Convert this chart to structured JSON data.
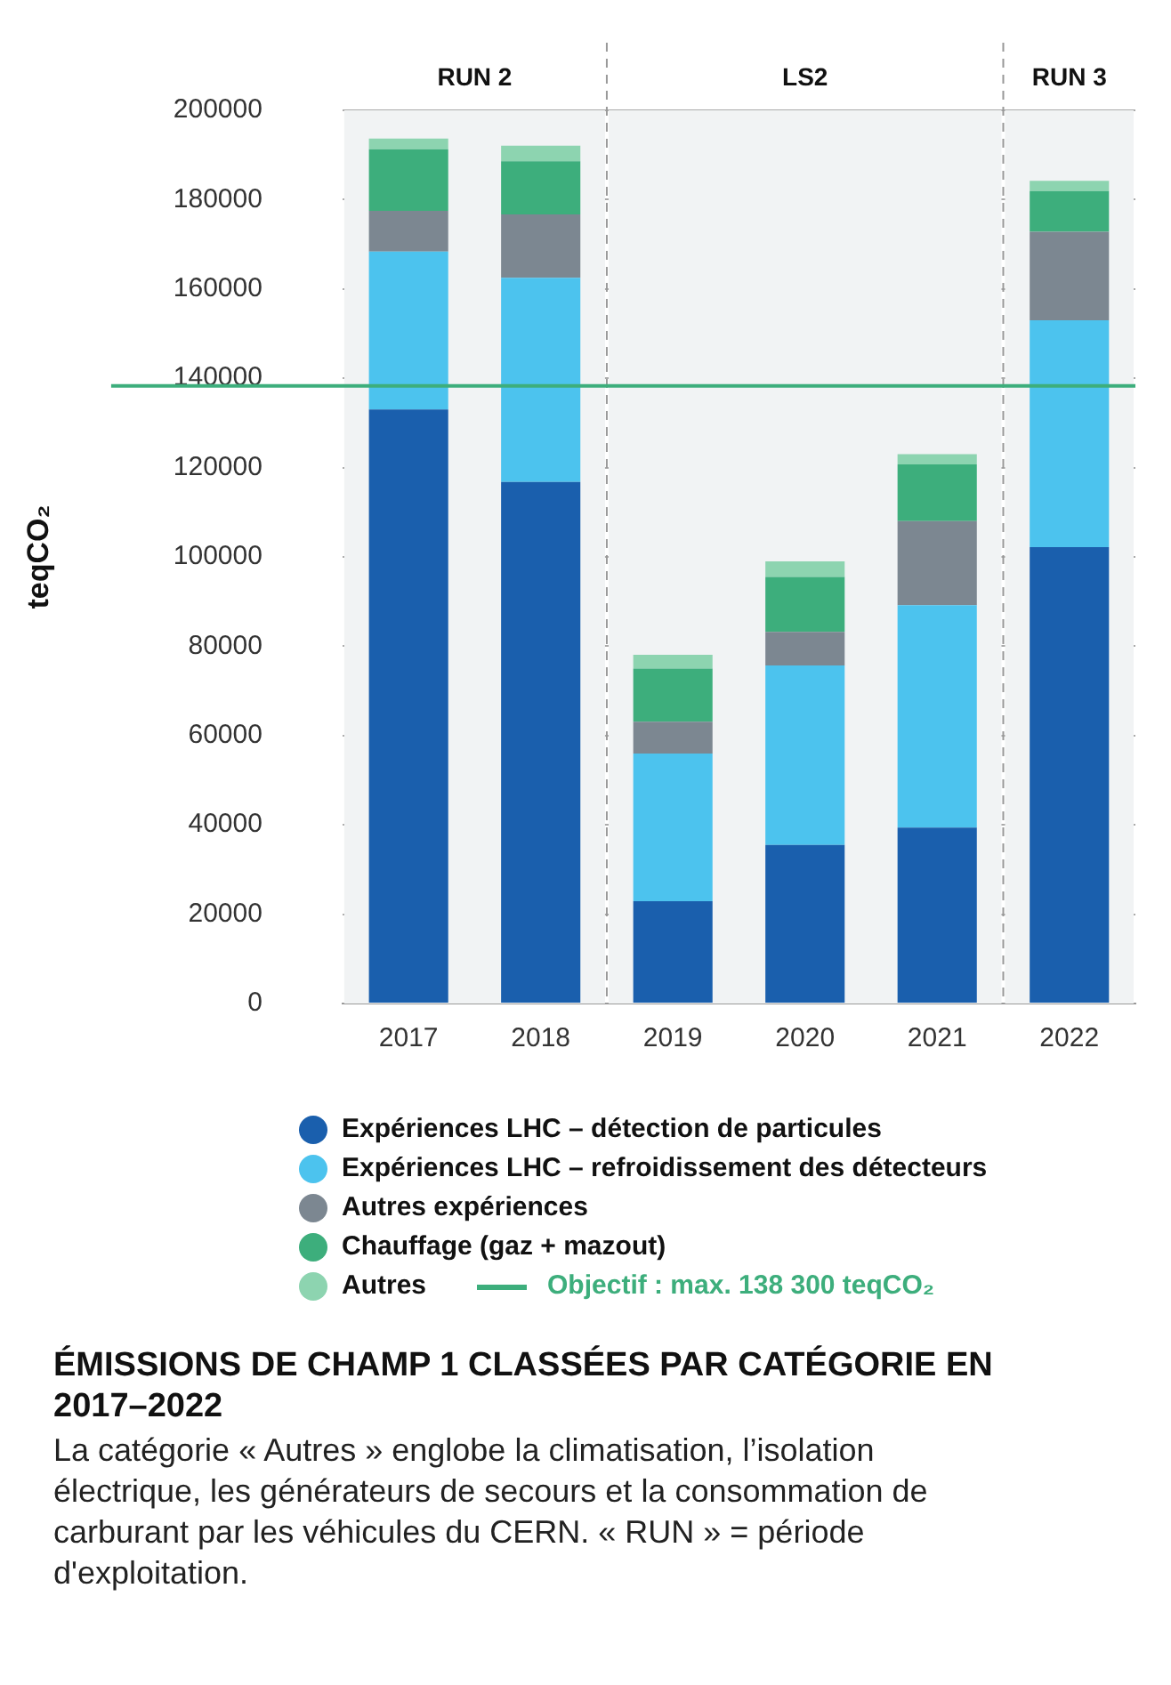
{
  "chart_data": {
    "type": "bar",
    "stacked": true,
    "title": "ÉMISSIONS DE CHAMP 1 CLASSÉES PAR CATÉGORIE EN 2017–2022",
    "subtitle": "La catégorie « Autres » englobe la climatisation, l’isolation électrique, les générateurs de secours et la consommation de carburant par les véhicules du CERN. « RUN » = période d'exploitation.",
    "ylabel": "teqCO₂",
    "categories": [
      "2017",
      "2018",
      "2019",
      "2020",
      "2021",
      "2022"
    ],
    "series": [
      {
        "name": "Expériences LHC – détection de particules",
        "color": "#1a5fad",
        "values": [
          133000,
          116800,
          22900,
          35500,
          39400,
          102200
        ]
      },
      {
        "name": "Expériences LHC – refroidissement des détecteurs",
        "color": "#4cc3ee",
        "values": [
          35400,
          45700,
          33100,
          40200,
          49800,
          50800
        ]
      },
      {
        "name": "Autres expériences",
        "color": "#7c8791",
        "values": [
          9100,
          14200,
          7100,
          7500,
          18800,
          19800
        ]
      },
      {
        "name": "Chauffage (gaz + mazout)",
        "color": "#3dae7c",
        "values": [
          13800,
          11900,
          11900,
          12300,
          12700,
          9100
        ]
      },
      {
        "name": "Autres",
        "color": "#8dd4b0",
        "values": [
          2400,
          3500,
          3100,
          3500,
          2300,
          2300
        ]
      }
    ],
    "ylim": [
      0,
      200000
    ],
    "yticks": [
      0,
      20000,
      40000,
      60000,
      80000,
      100000,
      120000,
      140000,
      160000,
      180000,
      200000
    ],
    "grid": "y",
    "legend": "bottom",
    "ref_lines": [
      {
        "axis": "y",
        "value": 138300,
        "label": "Objectif : max. 138 300 teqCO₂",
        "color": "#3dae7c"
      }
    ],
    "bands": [
      {
        "axis": "x",
        "from": "2017",
        "to": "2018",
        "label": "RUN 2",
        "color": "#f1f3f4"
      },
      {
        "axis": "x",
        "from": "2019",
        "to": "2021",
        "label": "LS2",
        "color": "#f1f3f4"
      },
      {
        "axis": "x",
        "from": "2022",
        "to": "2022",
        "label": "RUN 3",
        "color": "#f1f3f4"
      }
    ]
  }
}
